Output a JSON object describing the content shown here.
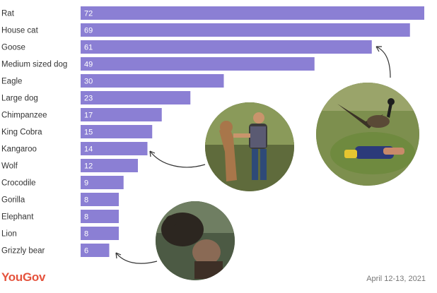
{
  "chart_data": {
    "type": "bar",
    "orientation": "horizontal",
    "categories": [
      "Rat",
      "House cat",
      "Goose",
      "Medium sized dog",
      "Eagle",
      "Large dog",
      "Chimpanzee",
      "King Cobra",
      "Kangaroo",
      "Wolf",
      "Crocodile",
      "Gorilla",
      "Elephant",
      "Lion",
      "Grizzly bear"
    ],
    "values": [
      72,
      69,
      61,
      49,
      30,
      23,
      17,
      15,
      14,
      12,
      9,
      8,
      8,
      8,
      6
    ],
    "xlim": [
      0,
      72
    ],
    "grid": false,
    "bar_color": "#8b7fd4"
  },
  "branding": {
    "logo": "YouGov",
    "logo_color": "#e5533d"
  },
  "date_text": "April 12-13, 2021",
  "photos": [
    {
      "subject": "goose attacking a person"
    },
    {
      "subject": "man facing a kangaroo"
    },
    {
      "subject": "grizzly bear attacking a man"
    }
  ]
}
